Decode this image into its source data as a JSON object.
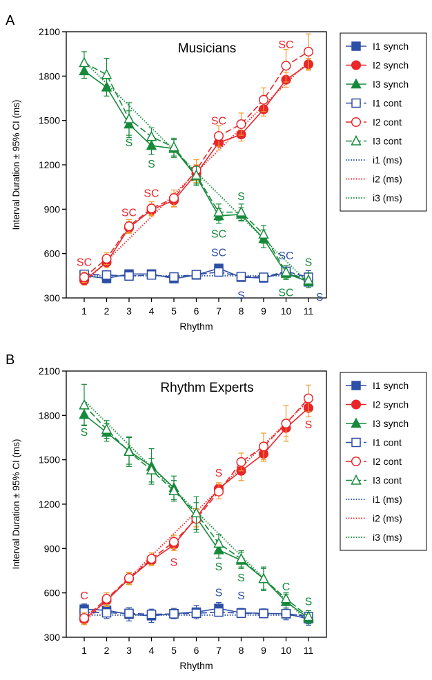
{
  "legend_entries": [
    "I1 synch",
    "I2 synch",
    "I3 synch",
    "I1 cont",
    "I2 cont",
    "I3 cont",
    "i1 (ms)",
    "i2 (ms)",
    "i3 (ms)"
  ],
  "colors": {
    "blue": "#2e4fa6",
    "red": "#e8262a",
    "green": "#168a3a",
    "orange": "#f09a2a",
    "axis": "#000000"
  },
  "chart_data": [
    {
      "type": "line",
      "panel_label": "A",
      "title": "Musicians",
      "xlabel": "Rhythm",
      "ylabel": "Interval Duration ± 95% CI (ms)",
      "x": [
        1,
        2,
        3,
        4,
        5,
        6,
        7,
        8,
        9,
        10,
        11
      ],
      "xlim": [
        0.2,
        11.8
      ],
      "ylim": [
        300,
        2100
      ],
      "yticks": [
        300,
        600,
        900,
        1200,
        1500,
        1800,
        2100
      ],
      "series": [
        {
          "name": "I1 synch",
          "color": "blue",
          "marker": "square",
          "filled": true,
          "dash": "solid",
          "values": [
            450,
            432,
            462,
            462,
            430,
            455,
            500,
            440,
            435,
            472,
            408
          ],
          "ci": [
            28,
            30,
            25,
            25,
            22,
            20,
            25,
            22,
            28,
            28,
            25
          ]
        },
        {
          "name": "I2 synch",
          "color": "red",
          "marker": "circle",
          "filled": true,
          "dash": "solid",
          "ci_color": "orange",
          "values": [
            418,
            540,
            775,
            895,
            960,
            1140,
            1350,
            1405,
            1575,
            1775,
            1880
          ],
          "ci": [
            30,
            35,
            40,
            40,
            45,
            60,
            50,
            45,
            45,
            50,
            40
          ]
        },
        {
          "name": "I3 synch",
          "color": "green",
          "marker": "triangle",
          "filled": true,
          "dash": "solid",
          "values": [
            1835,
            1725,
            1475,
            1330,
            1310,
            1120,
            855,
            865,
            700,
            465,
            410
          ],
          "ci": [
            50,
            60,
            90,
            60,
            60,
            60,
            50,
            45,
            60,
            40,
            40
          ]
        },
        {
          "name": "I1 cont",
          "color": "blue",
          "marker": "square",
          "filled": false,
          "dash": "dash",
          "values": [
            460,
            455,
            448,
            455,
            442,
            458,
            475,
            445,
            440,
            480,
            440
          ],
          "ci": [
            22,
            22,
            22,
            22,
            22,
            22,
            22,
            22,
            22,
            28,
            45
          ]
        },
        {
          "name": "I2 cont",
          "color": "red",
          "marker": "circle",
          "filled": false,
          "dash": "dash",
          "ci_color": "orange",
          "values": [
            440,
            565,
            785,
            905,
            975,
            1165,
            1395,
            1475,
            1640,
            1870,
            1965
          ],
          "ci": [
            35,
            40,
            45,
            45,
            55,
            70,
            70,
            75,
            80,
            110,
            120
          ]
        },
        {
          "name": "I3 cont",
          "color": "green",
          "marker": "triangle",
          "filled": false,
          "dash": "dash",
          "values": [
            1890,
            1810,
            1510,
            1390,
            1320,
            1130,
            880,
            880,
            730,
            475,
            420
          ],
          "ci": [
            75,
            110,
            110,
            60,
            60,
            60,
            55,
            55,
            60,
            45,
            50
          ]
        },
        {
          "name": "i1 (ms)",
          "color": "blue",
          "marker": "none",
          "filled": false,
          "dash": "dot",
          "values": [
            450,
            450,
            450,
            450,
            450,
            450,
            450,
            450,
            450,
            450,
            450
          ]
        },
        {
          "name": "i2 (ms)",
          "color": "red",
          "marker": "none",
          "filled": false,
          "dash": "dot",
          "values": [
            400,
            550,
            700,
            850,
            1000,
            1150,
            1300,
            1450,
            1600,
            1750,
            1900
          ]
        },
        {
          "name": "i3 (ms)",
          "color": "green",
          "marker": "none",
          "filled": false,
          "dash": "dot",
          "values": [
            1900,
            1750,
            1600,
            1450,
            1300,
            1150,
            1000,
            850,
            700,
            550,
            400
          ]
        }
      ],
      "annotations": [
        {
          "text": "SC",
          "color": "red",
          "x": 1,
          "y": 545
        },
        {
          "text": "SC",
          "color": "red",
          "x": 3,
          "y": 880
        },
        {
          "text": "SC",
          "color": "red",
          "x": 4,
          "y": 1010
        },
        {
          "text": "SC",
          "color": "red",
          "x": 7,
          "y": 1500
        },
        {
          "text": "SC",
          "color": "red",
          "x": 10,
          "y": 2015
        },
        {
          "text": "S",
          "color": "green",
          "x": 3,
          "y": 1355
        },
        {
          "text": "S",
          "color": "green",
          "x": 4,
          "y": 1210
        },
        {
          "text": "SC",
          "color": "green",
          "x": 7,
          "y": 735
        },
        {
          "text": "S",
          "color": "green",
          "x": 8,
          "y": 990
        },
        {
          "text": "SC",
          "color": "green",
          "x": 10,
          "y": 340
        },
        {
          "text": "S",
          "color": "green",
          "x": 11,
          "y": 545
        },
        {
          "text": "SC",
          "color": "blue",
          "x": 7,
          "y": 610
        },
        {
          "text": "S",
          "color": "blue",
          "x": 8,
          "y": 320
        },
        {
          "text": "SC",
          "color": "blue",
          "x": 10,
          "y": 590
        },
        {
          "text": "S",
          "color": "blue",
          "x": 11.5,
          "y": 310
        }
      ]
    },
    {
      "type": "line",
      "panel_label": "B",
      "title": "Rhythm Experts",
      "xlabel": "Rhythm",
      "ylabel": "Interval Duration ± 95% CI (ms)",
      "x": [
        1,
        2,
        3,
        4,
        5,
        6,
        7,
        8,
        9,
        10,
        11
      ],
      "xlim": [
        0.2,
        11.8
      ],
      "ylim": [
        300,
        2100
      ],
      "yticks": [
        300,
        600,
        900,
        1200,
        1500,
        1800,
        2100
      ],
      "series": [
        {
          "name": "I1 synch",
          "color": "blue",
          "marker": "square",
          "filled": true,
          "dash": "solid",
          "values": [
            490,
            482,
            455,
            445,
            460,
            470,
            495,
            465,
            462,
            458,
            425
          ],
          "ci": [
            35,
            55,
            45,
            45,
            35,
            45,
            40,
            30,
            30,
            40,
            45
          ]
        },
        {
          "name": "I2 synch",
          "color": "red",
          "marker": "circle",
          "filled": true,
          "dash": "solid",
          "ci_color": "orange",
          "values": [
            420,
            548,
            695,
            820,
            925,
            1110,
            1305,
            1425,
            1540,
            1715,
            1850
          ],
          "ci": [
            35,
            40,
            40,
            35,
            40,
            60,
            40,
            65,
            50,
            60,
            60
          ]
        },
        {
          "name": "I3 synch",
          "color": "green",
          "marker": "triangle",
          "filled": true,
          "dash": "solid",
          "values": [
            1805,
            1685,
            1560,
            1455,
            1310,
            1110,
            890,
            820,
            695,
            540,
            430
          ],
          "ci": [
            70,
            60,
            90,
            120,
            80,
            100,
            55,
            55,
            80,
            50,
            40
          ]
        },
        {
          "name": "I1 cont",
          "color": "blue",
          "marker": "square",
          "filled": false,
          "dash": "dash",
          "values": [
            470,
            465,
            462,
            455,
            458,
            462,
            470,
            462,
            460,
            460,
            440
          ],
          "ci": [
            25,
            25,
            25,
            25,
            25,
            25,
            25,
            25,
            25,
            25,
            25
          ]
        },
        {
          "name": "I2 cont",
          "color": "red",
          "marker": "circle",
          "filled": false,
          "dash": "dash",
          "ci_color": "orange",
          "values": [
            430,
            560,
            700,
            830,
            945,
            1100,
            1285,
            1485,
            1590,
            1745,
            1915
          ],
          "ci": [
            35,
            40,
            40,
            40,
            45,
            60,
            50,
            60,
            90,
            120,
            90
          ]
        },
        {
          "name": "I3 cont",
          "color": "green",
          "marker": "triangle",
          "filled": false,
          "dash": "dash",
          "values": [
            1870,
            1705,
            1555,
            1430,
            1290,
            1140,
            935,
            830,
            695,
            560,
            440
          ],
          "ci": [
            140,
            60,
            100,
            80,
            70,
            110,
            60,
            55,
            70,
            40,
            40
          ]
        },
        {
          "name": "i1 (ms)",
          "color": "blue",
          "marker": "none",
          "filled": false,
          "dash": "dot",
          "values": [
            450,
            450,
            450,
            450,
            450,
            450,
            450,
            450,
            450,
            450,
            450
          ]
        },
        {
          "name": "i2 (ms)",
          "color": "red",
          "marker": "none",
          "filled": false,
          "dash": "dot",
          "values": [
            400,
            550,
            700,
            850,
            1000,
            1150,
            1300,
            1450,
            1600,
            1750,
            1900
          ]
        },
        {
          "name": "i3 (ms)",
          "color": "green",
          "marker": "none",
          "filled": false,
          "dash": "dot",
          "values": [
            1900,
            1750,
            1600,
            1450,
            1300,
            1150,
            1000,
            850,
            700,
            550,
            400
          ]
        }
      ],
      "annotations": [
        {
          "text": "S",
          "color": "green",
          "x": 1,
          "y": 1690
        },
        {
          "text": "C",
          "color": "red",
          "x": 1,
          "y": 585
        },
        {
          "text": "S",
          "color": "red",
          "x": 5,
          "y": 810
        },
        {
          "text": "S",
          "color": "red",
          "x": 7,
          "y": 1415
        },
        {
          "text": "S",
          "color": "green",
          "x": 7,
          "y": 780
        },
        {
          "text": "S",
          "color": "green",
          "x": 8,
          "y": 705
        },
        {
          "text": "S",
          "color": "red",
          "x": 11,
          "y": 1740
        },
        {
          "text": "C",
          "color": "green",
          "x": 10,
          "y": 645
        },
        {
          "text": "S",
          "color": "green",
          "x": 11,
          "y": 545
        },
        {
          "text": "S",
          "color": "blue",
          "x": 7,
          "y": 605
        },
        {
          "text": "S",
          "color": "blue",
          "x": 8,
          "y": 585
        }
      ]
    }
  ]
}
